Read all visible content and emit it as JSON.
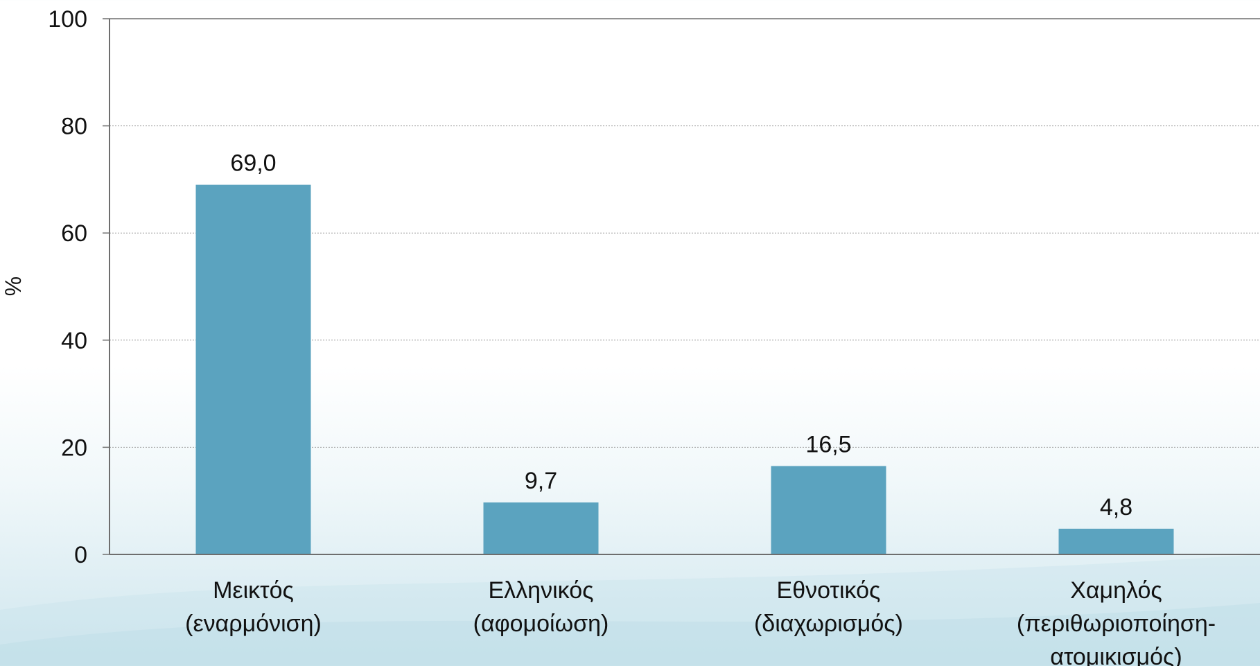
{
  "chart_data": {
    "type": "bar",
    "title": "",
    "xlabel": "",
    "ylabel": "%",
    "ylim": [
      0,
      100
    ],
    "yticks": [
      0,
      20,
      40,
      60,
      80,
      100
    ],
    "grid": true,
    "legend": "none",
    "bar_color": "#5ba3bf",
    "categories": [
      [
        "Μεικτός",
        "(εναρμόνιση)"
      ],
      [
        "Ελληνικός",
        "(αφομοίωση)"
      ],
      [
        "Εθνοτικός",
        "(διαχωρισμός)"
      ],
      [
        "Χαμηλός",
        "(περιθωριοποίηση-",
        "ατομικισμός)"
      ]
    ],
    "values": [
      69.0,
      9.7,
      16.5,
      4.8
    ],
    "value_labels": [
      "69,0",
      "9,7",
      "16,5",
      "4,8"
    ]
  }
}
